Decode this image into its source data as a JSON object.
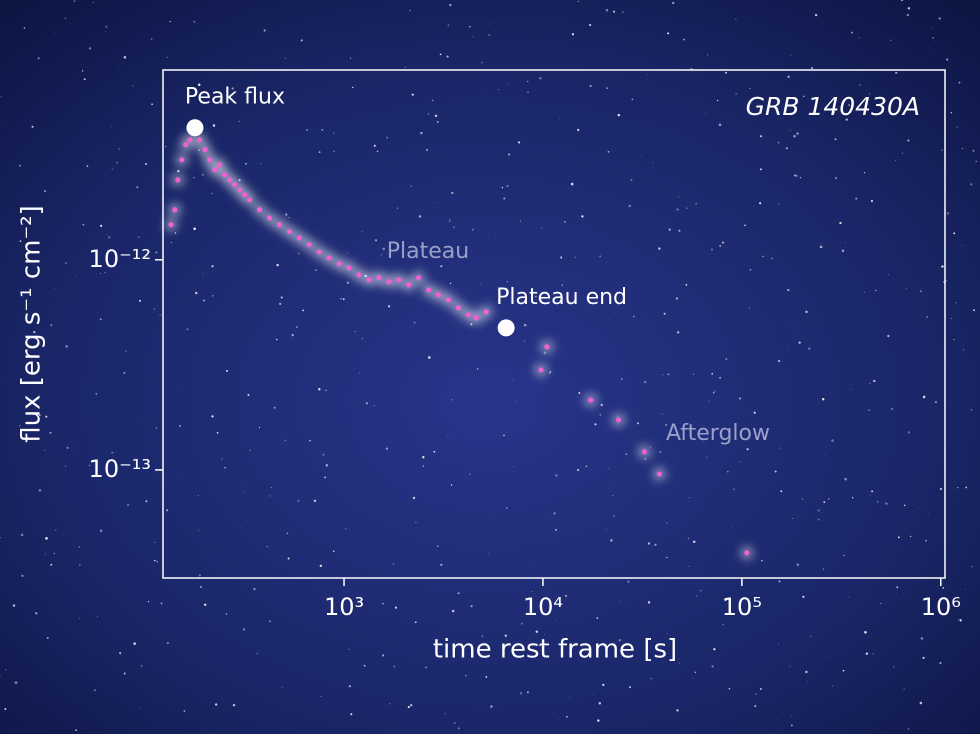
{
  "chart_data": {
    "type": "scatter",
    "annotation_title": "GRB 140430A",
    "xlabel": "time rest frame [s]",
    "ylabel": "flux [erg s⁻¹ cm⁻²]",
    "xscale": "log",
    "yscale": "log",
    "xlim": [
      123,
      1050000
    ],
    "ylim": [
      3.06e-14,
      8e-12
    ],
    "xticks": [
      {
        "value": 1000,
        "label": "10³"
      },
      {
        "value": 10000,
        "label": "10⁴"
      },
      {
        "value": 100000,
        "label": "10⁵"
      },
      {
        "value": 1000000,
        "label": "10⁶"
      }
    ],
    "yticks": [
      {
        "value": 1e-13,
        "label": "10⁻¹³"
      },
      {
        "value": 1e-12,
        "label": "10⁻¹²"
      }
    ],
    "color": "#f060d0",
    "x": [
      135,
      141,
      146,
      153,
      160,
      168,
      188,
      200,
      211,
      224,
      237,
      251,
      266,
      282,
      299,
      316,
      335,
      376,
      422,
      473,
      531,
      596,
      668,
      750,
      841,
      944,
      1059,
      1189,
      1334,
      1496,
      1679,
      1884,
      2113,
      2371,
      2661,
      2985,
      3350,
      3758,
      4217,
      4623,
      5188,
      10470,
      9770,
      17380,
      23990,
      32360,
      38460,
      105900
    ],
    "y": [
      1.47e-12,
      1.73e-12,
      2.4e-12,
      2.99e-12,
      3.53e-12,
      3.72e-12,
      3.72e-12,
      3.34e-12,
      2.99e-12,
      2.68e-12,
      2.83e-12,
      2.54e-12,
      2.4e-12,
      2.28e-12,
      2.15e-12,
      2.04e-12,
      1.93e-12,
      1.73e-12,
      1.58e-12,
      1.47e-12,
      1.36e-12,
      1.27e-12,
      1.18e-12,
      1.09e-12,
      1.02e-12,
      9.58e-13,
      9.16e-13,
      8.49e-13,
      8.04e-13,
      8.21e-13,
      7.86e-13,
      8.04e-13,
      7.6e-13,
      8.21e-13,
      7.19e-13,
      6.81e-13,
      6.45e-13,
      5.91e-13,
      5.47e-13,
      5.29e-13,
      5.65e-13,
      3.85e-13,
      2.99e-13,
      2.15e-13,
      1.73e-13,
      1.22e-13,
      9.57e-14,
      4.03e-14
    ],
    "highlights": [
      {
        "label": "Peak flux",
        "x": 178,
        "y": 4.25e-12
      },
      {
        "label": "Plateau end",
        "x": 6530,
        "y": 4.74e-13
      }
    ],
    "region_labels": [
      "Plateau",
      "Afterglow"
    ]
  }
}
